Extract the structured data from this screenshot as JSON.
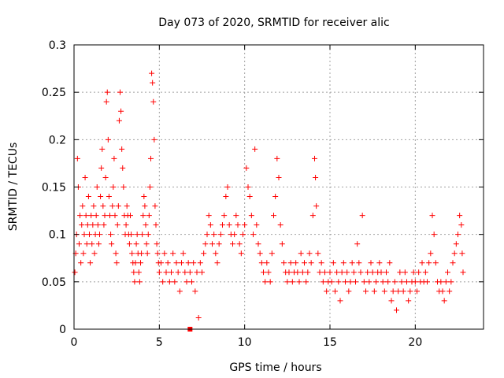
{
  "chart_data": {
    "type": "scatter",
    "title": "Day 073 of 2020, SRMTID for receiver alic",
    "xlabel": "GPS time / hours",
    "ylabel": "SRMTID / TECUs",
    "xlim": [
      0,
      24
    ],
    "ylim": [
      0,
      0.3
    ],
    "xticks": [
      0,
      5,
      10,
      15,
      20
    ],
    "xtick_labels": [
      "0",
      "5",
      "10",
      "15",
      "20"
    ],
    "yticks": [
      0,
      0.05,
      0.1,
      0.15,
      0.2,
      0.25,
      0.3
    ],
    "ytick_labels": [
      "0",
      "0.05",
      "0.1",
      "0.15",
      "0.2",
      "0.25",
      "0.3"
    ],
    "grid": true,
    "marker": "+",
    "color": "#ff0000",
    "baseline_marker": {
      "x": 6.8,
      "y": 0
    },
    "points": [
      [
        0.05,
        0.06
      ],
      [
        0.1,
        0.08
      ],
      [
        0.15,
        0.1
      ],
      [
        0.2,
        0.18
      ],
      [
        0.25,
        0.15
      ],
      [
        0.3,
        0.09
      ],
      [
        0.35,
        0.12
      ],
      [
        0.4,
        0.07
      ],
      [
        0.45,
        0.11
      ],
      [
        0.5,
        0.13
      ],
      [
        0.55,
        0.08
      ],
      [
        0.6,
        0.1
      ],
      [
        0.65,
        0.16
      ],
      [
        0.7,
        0.12
      ],
      [
        0.75,
        0.09
      ],
      [
        0.8,
        0.11
      ],
      [
        0.85,
        0.14
      ],
      [
        0.9,
        0.1
      ],
      [
        0.95,
        0.07
      ],
      [
        1.0,
        0.12
      ],
      [
        1.05,
        0.09
      ],
      [
        1.1,
        0.11
      ],
      [
        1.15,
        0.13
      ],
      [
        1.2,
        0.08
      ],
      [
        1.25,
        0.1
      ],
      [
        1.3,
        0.12
      ],
      [
        1.35,
        0.15
      ],
      [
        1.4,
        0.11
      ],
      [
        1.45,
        0.09
      ],
      [
        1.5,
        0.1
      ],
      [
        1.55,
        0.14
      ],
      [
        1.6,
        0.17
      ],
      [
        1.65,
        0.19
      ],
      [
        1.7,
        0.13
      ],
      [
        1.75,
        0.11
      ],
      [
        1.8,
        0.12
      ],
      [
        1.85,
        0.16
      ],
      [
        1.9,
        0.24
      ],
      [
        1.95,
        0.25
      ],
      [
        2.0,
        0.2
      ],
      [
        2.05,
        0.14
      ],
      [
        2.1,
        0.12
      ],
      [
        2.15,
        0.1
      ],
      [
        2.2,
        0.09
      ],
      [
        2.25,
        0.13
      ],
      [
        2.3,
        0.15
      ],
      [
        2.35,
        0.18
      ],
      [
        2.4,
        0.12
      ],
      [
        2.45,
        0.08
      ],
      [
        2.5,
        0.07
      ],
      [
        2.55,
        0.11
      ],
      [
        2.6,
        0.13
      ],
      [
        2.65,
        0.22
      ],
      [
        2.7,
        0.25
      ],
      [
        2.75,
        0.23
      ],
      [
        2.8,
        0.19
      ],
      [
        2.85,
        0.17
      ],
      [
        2.9,
        0.15
      ],
      [
        2.95,
        0.12
      ],
      [
        3.0,
        0.1
      ],
      [
        3.05,
        0.11
      ],
      [
        3.1,
        0.13
      ],
      [
        3.15,
        0.12
      ],
      [
        3.2,
        0.1
      ],
      [
        3.25,
        0.09
      ],
      [
        3.3,
        0.12
      ],
      [
        3.35,
        0.1
      ],
      [
        3.4,
        0.08
      ],
      [
        3.45,
        0.07
      ],
      [
        3.5,
        0.06
      ],
      [
        3.55,
        0.05
      ],
      [
        3.6,
        0.07
      ],
      [
        3.65,
        0.09
      ],
      [
        3.7,
        0.1
      ],
      [
        3.75,
        0.08
      ],
      [
        3.8,
        0.06
      ],
      [
        3.85,
        0.05
      ],
      [
        3.9,
        0.07
      ],
      [
        3.95,
        0.08
      ],
      [
        4.0,
        0.1
      ],
      [
        4.05,
        0.12
      ],
      [
        4.1,
        0.14
      ],
      [
        4.15,
        0.13
      ],
      [
        4.2,
        0.11
      ],
      [
        4.25,
        0.09
      ],
      [
        4.3,
        0.08
      ],
      [
        4.35,
        0.1
      ],
      [
        4.4,
        0.12
      ],
      [
        4.45,
        0.15
      ],
      [
        4.5,
        0.18
      ],
      [
        4.55,
        0.27
      ],
      [
        4.6,
        0.26
      ],
      [
        4.65,
        0.24
      ],
      [
        4.7,
        0.2
      ],
      [
        4.75,
        0.13
      ],
      [
        4.8,
        0.11
      ],
      [
        4.85,
        0.09
      ],
      [
        4.9,
        0.08
      ],
      [
        4.95,
        0.07
      ],
      [
        5.0,
        0.06
      ],
      [
        5.1,
        0.07
      ],
      [
        5.2,
        0.05
      ],
      [
        5.3,
        0.08
      ],
      [
        5.4,
        0.06
      ],
      [
        5.5,
        0.07
      ],
      [
        5.6,
        0.05
      ],
      [
        5.7,
        0.06
      ],
      [
        5.8,
        0.08
      ],
      [
        5.9,
        0.05
      ],
      [
        6.0,
        0.07
      ],
      [
        6.1,
        0.06
      ],
      [
        6.2,
        0.04
      ],
      [
        6.3,
        0.07
      ],
      [
        6.4,
        0.08
      ],
      [
        6.5,
        0.06
      ],
      [
        6.6,
        0.05
      ],
      [
        6.7,
        0.07
      ],
      [
        6.8,
        0.06
      ],
      [
        6.9,
        0.05
      ],
      [
        7.0,
        0.07
      ],
      [
        7.1,
        0.04
      ],
      [
        7.2,
        0.06
      ],
      [
        7.3,
        0.012
      ],
      [
        7.4,
        0.07
      ],
      [
        7.5,
        0.06
      ],
      [
        7.6,
        0.08
      ],
      [
        7.7,
        0.09
      ],
      [
        7.8,
        0.1
      ],
      [
        7.9,
        0.12
      ],
      [
        8.0,
        0.11
      ],
      [
        8.1,
        0.09
      ],
      [
        8.2,
        0.1
      ],
      [
        8.3,
        0.08
      ],
      [
        8.4,
        0.07
      ],
      [
        8.5,
        0.09
      ],
      [
        8.6,
        0.1
      ],
      [
        8.7,
        0.11
      ],
      [
        8.8,
        0.12
      ],
      [
        8.9,
        0.14
      ],
      [
        9.0,
        0.15
      ],
      [
        9.1,
        0.11
      ],
      [
        9.2,
        0.1
      ],
      [
        9.3,
        0.09
      ],
      [
        9.4,
        0.1
      ],
      [
        9.5,
        0.12
      ],
      [
        9.6,
        0.11
      ],
      [
        9.7,
        0.09
      ],
      [
        9.8,
        0.08
      ],
      [
        9.9,
        0.1
      ],
      [
        10.0,
        0.11
      ],
      [
        10.1,
        0.17
      ],
      [
        10.2,
        0.15
      ],
      [
        10.3,
        0.14
      ],
      [
        10.4,
        0.12
      ],
      [
        10.5,
        0.1
      ],
      [
        10.6,
        0.19
      ],
      [
        10.7,
        0.11
      ],
      [
        10.8,
        0.09
      ],
      [
        10.9,
        0.08
      ],
      [
        11.0,
        0.07
      ],
      [
        11.1,
        0.06
      ],
      [
        11.2,
        0.05
      ],
      [
        11.3,
        0.07
      ],
      [
        11.4,
        0.06
      ],
      [
        11.5,
        0.05
      ],
      [
        11.6,
        0.08
      ],
      [
        11.7,
        0.12
      ],
      [
        11.8,
        0.14
      ],
      [
        11.9,
        0.18
      ],
      [
        12.0,
        0.16
      ],
      [
        12.1,
        0.11
      ],
      [
        12.2,
        0.09
      ],
      [
        12.3,
        0.07
      ],
      [
        12.4,
        0.06
      ],
      [
        12.5,
        0.05
      ],
      [
        12.6,
        0.06
      ],
      [
        12.7,
        0.07
      ],
      [
        12.8,
        0.05
      ],
      [
        12.9,
        0.06
      ],
      [
        13.0,
        0.07
      ],
      [
        13.1,
        0.06
      ],
      [
        13.2,
        0.05
      ],
      [
        13.3,
        0.08
      ],
      [
        13.4,
        0.06
      ],
      [
        13.5,
        0.07
      ],
      [
        13.6,
        0.05
      ],
      [
        13.7,
        0.06
      ],
      [
        13.8,
        0.08
      ],
      [
        13.9,
        0.07
      ],
      [
        14.0,
        0.12
      ],
      [
        14.1,
        0.18
      ],
      [
        14.15,
        0.16
      ],
      [
        14.2,
        0.13
      ],
      [
        14.3,
        0.08
      ],
      [
        14.4,
        0.06
      ],
      [
        14.5,
        0.07
      ],
      [
        14.6,
        0.05
      ],
      [
        14.7,
        0.06
      ],
      [
        14.8,
        0.04
      ],
      [
        14.9,
        0.05
      ],
      [
        15.0,
        0.06
      ],
      [
        15.1,
        0.05
      ],
      [
        15.2,
        0.07
      ],
      [
        15.3,
        0.04
      ],
      [
        15.4,
        0.06
      ],
      [
        15.5,
        0.05
      ],
      [
        15.6,
        0.03
      ],
      [
        15.7,
        0.06
      ],
      [
        15.8,
        0.07
      ],
      [
        15.9,
        0.05
      ],
      [
        16.0,
        0.06
      ],
      [
        16.1,
        0.04
      ],
      [
        16.2,
        0.05
      ],
      [
        16.3,
        0.07
      ],
      [
        16.4,
        0.06
      ],
      [
        16.5,
        0.05
      ],
      [
        16.6,
        0.09
      ],
      [
        16.7,
        0.07
      ],
      [
        16.8,
        0.06
      ],
      [
        16.9,
        0.12
      ],
      [
        17.0,
        0.05
      ],
      [
        17.1,
        0.04
      ],
      [
        17.2,
        0.06
      ],
      [
        17.3,
        0.05
      ],
      [
        17.4,
        0.07
      ],
      [
        17.5,
        0.06
      ],
      [
        17.6,
        0.04
      ],
      [
        17.7,
        0.05
      ],
      [
        17.8,
        0.06
      ],
      [
        17.9,
        0.07
      ],
      [
        18.0,
        0.06
      ],
      [
        18.1,
        0.05
      ],
      [
        18.2,
        0.04
      ],
      [
        18.3,
        0.06
      ],
      [
        18.4,
        0.05
      ],
      [
        18.5,
        0.07
      ],
      [
        18.6,
        0.03
      ],
      [
        18.7,
        0.04
      ],
      [
        18.8,
        0.05
      ],
      [
        18.9,
        0.02
      ],
      [
        19.0,
        0.04
      ],
      [
        19.1,
        0.06
      ],
      [
        19.2,
        0.05
      ],
      [
        19.3,
        0.04
      ],
      [
        19.4,
        0.06
      ],
      [
        19.5,
        0.05
      ],
      [
        19.6,
        0.03
      ],
      [
        19.7,
        0.04
      ],
      [
        19.8,
        0.05
      ],
      [
        19.9,
        0.06
      ],
      [
        20.0,
        0.05
      ],
      [
        20.1,
        0.04
      ],
      [
        20.2,
        0.06
      ],
      [
        20.3,
        0.05
      ],
      [
        20.4,
        0.07
      ],
      [
        20.5,
        0.05
      ],
      [
        20.6,
        0.06
      ],
      [
        20.7,
        0.05
      ],
      [
        20.8,
        0.07
      ],
      [
        20.9,
        0.08
      ],
      [
        21.0,
        0.12
      ],
      [
        21.1,
        0.1
      ],
      [
        21.2,
        0.07
      ],
      [
        21.3,
        0.05
      ],
      [
        21.4,
        0.04
      ],
      [
        21.5,
        0.05
      ],
      [
        21.6,
        0.04
      ],
      [
        21.7,
        0.03
      ],
      [
        21.8,
        0.05
      ],
      [
        21.9,
        0.06
      ],
      [
        22.0,
        0.04
      ],
      [
        22.1,
        0.05
      ],
      [
        22.2,
        0.07
      ],
      [
        22.3,
        0.08
      ],
      [
        22.4,
        0.09
      ],
      [
        22.5,
        0.1
      ],
      [
        22.6,
        0.12
      ],
      [
        22.7,
        0.11
      ],
      [
        22.75,
        0.08
      ],
      [
        22.8,
        0.06
      ]
    ]
  }
}
